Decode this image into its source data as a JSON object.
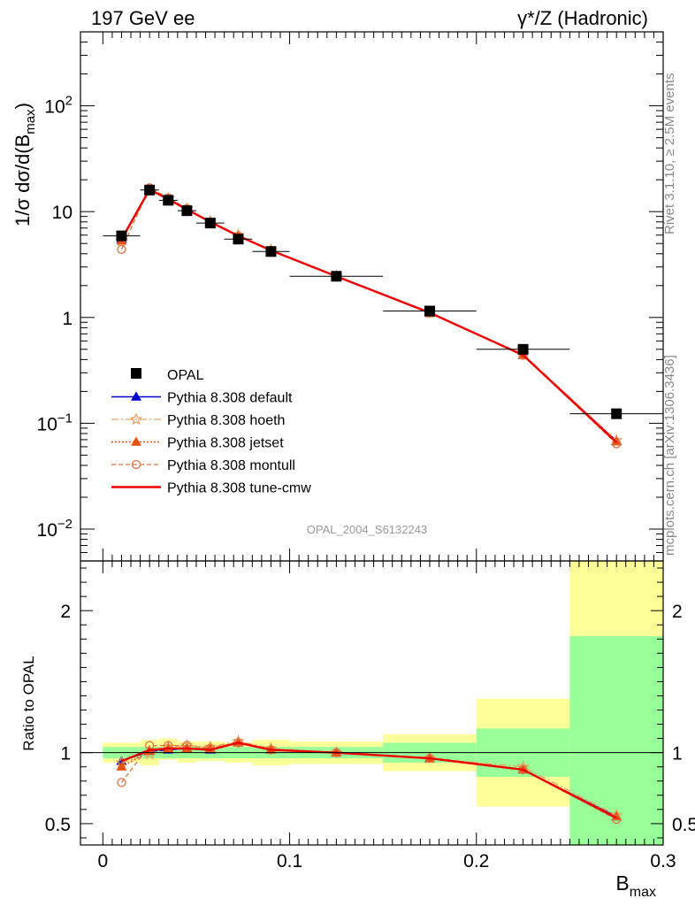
{
  "header": {
    "left": "197 GeV ee",
    "right": "γ*/Z (Hadronic)"
  },
  "side_labels": {
    "rivet": "Rivet 3.1.10, ≥ 2.5M events",
    "source": "mcplots.cern.ch [arXiv:1306.3436]"
  },
  "watermark": "OPAL_2004_S6132243",
  "chart_data": [
    {
      "type": "line",
      "panel": "main",
      "ylabel": "1/σ dσ/d(B",
      "ylabel_sub": "max",
      "ylabel_end": ")",
      "yscale": "log",
      "ylim": [
        0.005,
        500
      ],
      "xlim": [
        -0.012,
        0.3
      ],
      "y_ticks": [
        {
          "v": 0.01,
          "base": "10",
          "exp": "−2"
        },
        {
          "v": 0.1,
          "base": "10",
          "exp": "−1"
        },
        {
          "v": 1,
          "base": "1",
          "exp": ""
        },
        {
          "v": 10,
          "base": "10",
          "exp": ""
        },
        {
          "v": 100,
          "base": "10",
          "exp": "2"
        }
      ],
      "legend_position": "lower-left",
      "data": {
        "x": [
          0.01,
          0.025,
          0.035,
          0.045,
          0.0575,
          0.0725,
          0.09,
          0.125,
          0.175,
          0.225,
          0.275
        ],
        "xerr": [
          0.01,
          0.005,
          0.005,
          0.005,
          0.0075,
          0.0075,
          0.01,
          0.025,
          0.025,
          0.025,
          0.025
        ],
        "opal": [
          5.9,
          16.0,
          12.8,
          10.2,
          7.8,
          5.5,
          4.2,
          2.45,
          1.15,
          0.5,
          0.123
        ]
      },
      "series": [
        {
          "name": "OPAL",
          "style": "opal",
          "color": "#000000",
          "values": [
            5.9,
            16.0,
            12.8,
            10.2,
            7.8,
            5.5,
            4.2,
            2.45,
            1.15,
            0.5,
            0.123
          ]
        },
        {
          "name": "Pythia 8.308 default",
          "style": "default",
          "color": "#0000cc",
          "values": [
            5.5,
            16.0,
            13.1,
            10.5,
            8.0,
            5.9,
            4.3,
            2.45,
            1.1,
            0.44,
            0.068
          ]
        },
        {
          "name": "Pythia 8.308 hoeth",
          "style": "hoeth",
          "color": "#e8a060",
          "values": [
            5.3,
            16.1,
            13.3,
            10.6,
            8.1,
            6.0,
            4.35,
            2.46,
            1.1,
            0.45,
            0.069
          ]
        },
        {
          "name": "Pythia 8.308 jetset",
          "style": "jetset",
          "color": "#e85010",
          "values": [
            5.3,
            16.1,
            13.2,
            10.5,
            8.0,
            5.9,
            4.3,
            2.45,
            1.1,
            0.44,
            0.067
          ]
        },
        {
          "name": "Pythia 8.308 montull",
          "style": "montull",
          "color": "#e07040",
          "values": [
            4.4,
            16.8,
            13.5,
            10.7,
            8.0,
            5.9,
            4.3,
            2.46,
            1.1,
            0.44,
            0.064
          ]
        },
        {
          "name": "Pythia 8.308 tune-cmw",
          "style": "cmw",
          "color": "#ee0000",
          "values": [
            5.5,
            16.2,
            13.1,
            10.5,
            8.0,
            5.9,
            4.3,
            2.45,
            1.11,
            0.44,
            0.066
          ]
        }
      ]
    },
    {
      "type": "line",
      "panel": "ratio",
      "ylabel": "Ratio to OPAL",
      "xlabel": "B",
      "xlabel_sub": "max",
      "ylim": [
        0.35,
        2.35
      ],
      "xlim": [
        -0.012,
        0.3
      ],
      "x_ticks": [
        {
          "v": 0,
          "label": "0"
        },
        {
          "v": 0.1,
          "label": "0.1"
        },
        {
          "v": 0.2,
          "label": "0.2"
        },
        {
          "v": 0.3,
          "label": "0.3"
        }
      ],
      "y_ticks": [
        {
          "v": 0.5,
          "label": "0.5"
        },
        {
          "v": 1,
          "label": "1"
        },
        {
          "v": 2,
          "label": "2"
        }
      ],
      "bands": [
        {
          "x0": 0.0,
          "x1": 0.02,
          "stat": [
            0.96,
            1.04
          ],
          "total": [
            0.93,
            1.07
          ]
        },
        {
          "x0": 0.02,
          "x1": 0.03,
          "stat": [
            0.96,
            1.04
          ],
          "total": [
            0.91,
            1.09
          ]
        },
        {
          "x0": 0.03,
          "x1": 0.04,
          "stat": [
            0.96,
            1.04
          ],
          "total": [
            0.95,
            1.1
          ]
        },
        {
          "x0": 0.04,
          "x1": 0.05,
          "stat": [
            0.96,
            1.04
          ],
          "total": [
            0.93,
            1.08
          ]
        },
        {
          "x0": 0.05,
          "x1": 0.065,
          "stat": [
            0.96,
            1.04
          ],
          "total": [
            0.94,
            1.08
          ]
        },
        {
          "x0": 0.065,
          "x1": 0.08,
          "stat": [
            0.96,
            1.04
          ],
          "total": [
            0.93,
            1.07
          ]
        },
        {
          "x0": 0.08,
          "x1": 0.1,
          "stat": [
            0.96,
            1.04
          ],
          "total": [
            0.91,
            1.09
          ]
        },
        {
          "x0": 0.1,
          "x1": 0.15,
          "stat": [
            0.96,
            1.04
          ],
          "total": [
            0.92,
            1.08
          ]
        },
        {
          "x0": 0.15,
          "x1": 0.2,
          "stat": [
            0.93,
            1.07
          ],
          "total": [
            0.87,
            1.13
          ]
        },
        {
          "x0": 0.2,
          "x1": 0.25,
          "stat": [
            0.83,
            1.17
          ],
          "total": [
            0.62,
            1.38
          ]
        },
        {
          "x0": 0.25,
          "x1": 0.3,
          "stat": [
            0.35,
            1.82
          ],
          "total": [
            0.35,
            2.35
          ]
        }
      ],
      "series": [
        {
          "name": "Pythia 8.308 default",
          "style": "default",
          "color": "#0000cc",
          "values": [
            0.94,
            1.01,
            1.02,
            1.03,
            1.02,
            1.07,
            1.02,
            1.0,
            0.96,
            0.88,
            0.55
          ]
        },
        {
          "name": "Pythia 8.308 hoeth",
          "style": "hoeth",
          "color": "#e8a060",
          "values": [
            0.93,
            0.99,
            1.04,
            1.05,
            1.04,
            1.08,
            1.03,
            1.0,
            0.96,
            0.9,
            0.56
          ]
        },
        {
          "name": "Pythia 8.308 jetset",
          "style": "jetset",
          "color": "#e85010",
          "values": [
            0.9,
            1.01,
            1.03,
            1.03,
            1.03,
            1.07,
            1.02,
            1.0,
            0.96,
            0.88,
            0.55
          ]
        },
        {
          "name": "Pythia 8.308 montull",
          "style": "montull",
          "color": "#e07040",
          "values": [
            0.79,
            1.05,
            1.05,
            1.05,
            1.03,
            1.07,
            1.02,
            1.0,
            0.96,
            0.88,
            0.53
          ]
        },
        {
          "name": "Pythia 8.308 tune-cmw",
          "style": "cmw",
          "color": "#ee0000",
          "values": [
            0.94,
            1.02,
            1.03,
            1.03,
            1.02,
            1.07,
            1.02,
            1.0,
            0.96,
            0.88,
            0.54
          ]
        }
      ]
    }
  ],
  "colors": {
    "stat_band": "#99ff99",
    "total_band": "#ffff99"
  }
}
